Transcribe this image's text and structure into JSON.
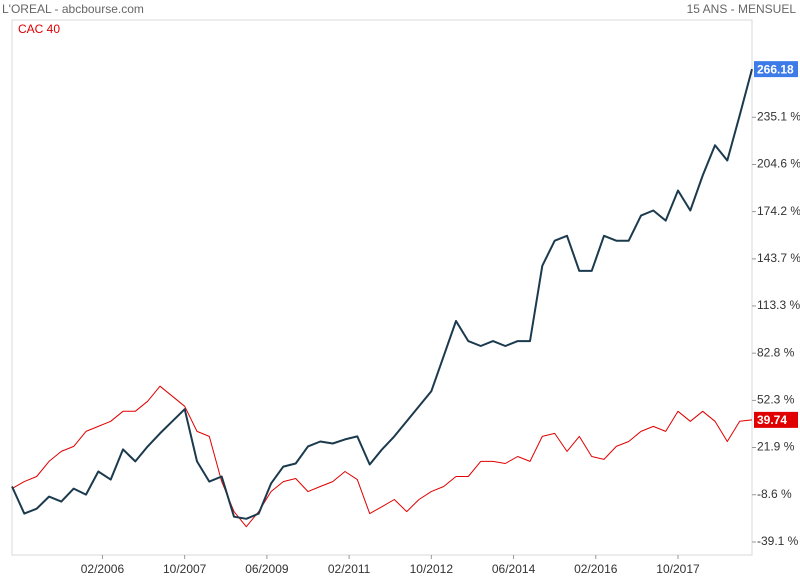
{
  "chart_data": {
    "type": "line",
    "title": "L'OREAL - abcbourse.com",
    "subtitle": "15 ANS - MENSUEL",
    "x": [
      "04/2004",
      "07/2004",
      "10/2004",
      "01/2005",
      "04/2005",
      "07/2005",
      "10/2005",
      "01/2006",
      "04/2006",
      "07/2006",
      "10/2006",
      "01/2007",
      "04/2007",
      "07/2007",
      "10/2007",
      "01/2008",
      "04/2008",
      "07/2008",
      "10/2008",
      "01/2009",
      "04/2009",
      "07/2009",
      "10/2009",
      "01/2010",
      "04/2010",
      "07/2010",
      "10/2010",
      "01/2011",
      "04/2011",
      "07/2011",
      "10/2011",
      "01/2012",
      "04/2012",
      "07/2012",
      "10/2012",
      "01/2013",
      "04/2013",
      "07/2013",
      "10/2013",
      "01/2014",
      "04/2014",
      "07/2014",
      "10/2014",
      "01/2015",
      "04/2015",
      "07/2015",
      "10/2015",
      "01/2016",
      "04/2016",
      "07/2016",
      "10/2016",
      "01/2017",
      "04/2017",
      "07/2017",
      "10/2017",
      "01/2018",
      "04/2018",
      "07/2018",
      "10/2018",
      "01/2019",
      "04/2019"
    ],
    "series": [
      {
        "color": "#1b3a4e",
        "label_color": "#3d7be8",
        "values": [
          -3.3,
          -20.8,
          -17.6,
          -9.8,
          -13.0,
          -4.6,
          -8.5,
          6.4,
          1.2,
          20.7,
          12.9,
          22.6,
          31.0,
          38.8,
          46.6,
          12.9,
          -0.1,
          3.2,
          -22.8,
          -24.1,
          -20.8,
          -1.4,
          9.6,
          11.6,
          22.6,
          25.8,
          24.5,
          27.1,
          29.1,
          10.9,
          20.7,
          29.1,
          38.8,
          48.5,
          58.2,
          80.9,
          103.6,
          90.6,
          87.4,
          90.6,
          87.4,
          90.6,
          90.6,
          139.2,
          155.4,
          158.6,
          135.9,
          135.9,
          158.6,
          155.4,
          155.4,
          171.6,
          174.9,
          168.4,
          187.8,
          174.9,
          197.5,
          217.0,
          207.2,
          236.4,
          266.18
        ]
      },
      {
        "name": "CAC 40",
        "color": "#e00000",
        "label_color": "#e00000",
        "values": [
          -4.6,
          -0.1,
          3.2,
          12.9,
          19.4,
          22.6,
          32.3,
          35.5,
          38.8,
          45.3,
          45.3,
          51.8,
          61.5,
          55.0,
          48.5,
          32.3,
          29.1,
          -0.1,
          -19.5,
          -29.2,
          -19.5,
          -6.6,
          -0.1,
          1.9,
          -6.6,
          -3.3,
          -0.1,
          6.4,
          1.2,
          -20.8,
          -16.3,
          -11.7,
          -19.5,
          -11.7,
          -6.6,
          -3.3,
          3.2,
          3.2,
          12.9,
          12.9,
          11.6,
          16.1,
          12.9,
          29.1,
          31.0,
          19.4,
          29.1,
          16.1,
          14.2,
          22.6,
          25.8,
          32.3,
          35.5,
          32.3,
          45.3,
          38.8,
          45.3,
          38.8,
          25.8,
          38.8,
          39.74
        ]
      }
    ],
    "xlim": [
      "04/2004",
      "04/2019"
    ],
    "xticks": [
      "02/2006",
      "10/2007",
      "06/2009",
      "02/2011",
      "10/2012",
      "06/2014",
      "02/2016",
      "10/2017"
    ],
    "ylim": [
      -47.5,
      297.9
    ],
    "yticks": [
      {
        "value": -39.1,
        "label": "-39.1 %"
      },
      {
        "value": -8.6,
        "label": "-8.6 %"
      },
      {
        "value": 21.9,
        "label": "21.9 %"
      },
      {
        "value": 52.3,
        "label": "52.3 %"
      },
      {
        "value": 82.8,
        "label": "82.8 %"
      },
      {
        "value": 113.3,
        "label": "113.3 %"
      },
      {
        "value": 143.7,
        "label": "143.7 %"
      },
      {
        "value": 174.2,
        "label": "174.2 %"
      },
      {
        "value": 204.6,
        "label": "204.6 %"
      },
      {
        "value": 235.1,
        "label": "235.1 %"
      }
    ]
  }
}
